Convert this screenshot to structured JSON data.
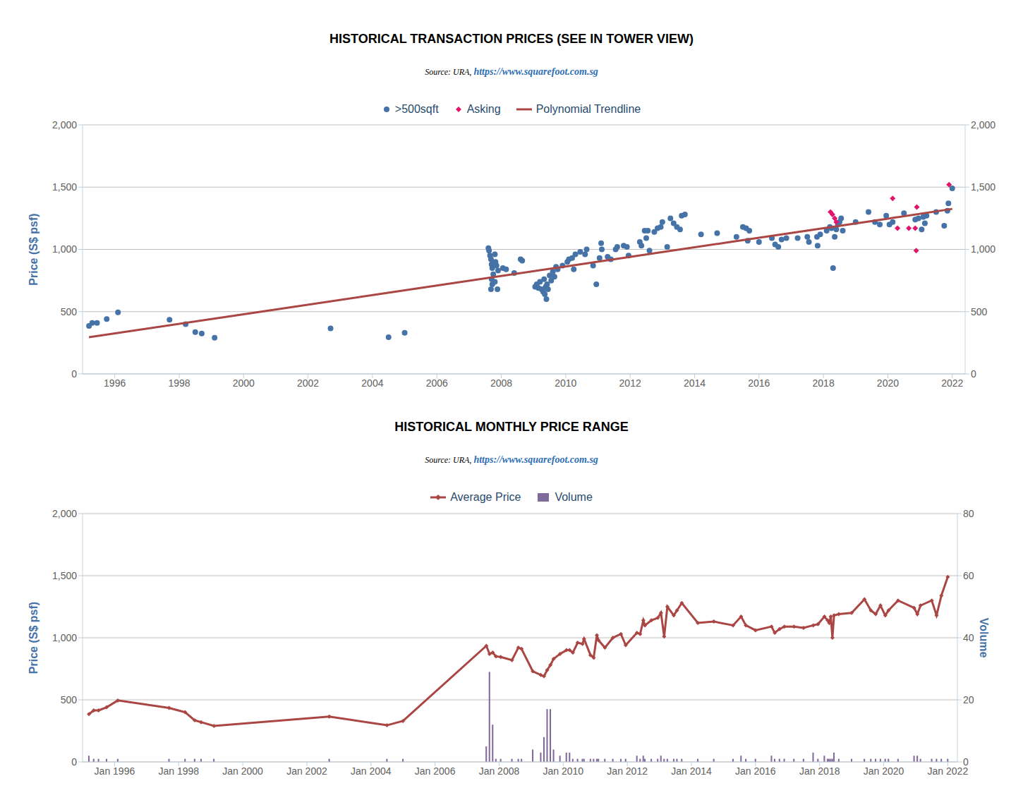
{
  "chart_data": [
    {
      "type": "scatter",
      "title": "HISTORICAL TRANSACTION PRICES (SEE IN TOWER VIEW)",
      "subtitle": "Source: URA, https://www.squarefoot.com.sg",
      "y_label": "Price (S$ psf)",
      "xlim": [
        1995,
        2022.4
      ],
      "xticks": [
        1996,
        1998,
        2000,
        2002,
        2004,
        2006,
        2008,
        2010,
        2012,
        2014,
        2016,
        2018,
        2020,
        2022
      ],
      "ylim": [
        0,
        2000
      ],
      "yticks": [
        0,
        500,
        {
          "value": 1000,
          "label": "1,000"
        },
        {
          "value": 1500,
          "label": "1,500"
        },
        {
          "value": 2000,
          "label": "2,000"
        }
      ],
      "y2lim": [
        0,
        2000
      ],
      "y2ticks": [
        0,
        500,
        {
          "value": 1000,
          "label": "1,000"
        },
        {
          "value": 1500,
          "label": "1,500"
        },
        {
          "value": 2000,
          "label": "2,000"
        }
      ],
      "grid": true,
      "legend": "top",
      "series": [
        {
          "name": ">500sqft",
          "type": "scatter",
          "color": "#4572A7",
          "marker": "circle",
          "x": [
            1995.2,
            1995.3,
            1995.45,
            1995.75,
            1996.1,
            1997.7,
            1998.2,
            1998.5,
            1998.7,
            1999.1,
            2002.7,
            2004.5,
            2005.0,
            2007.6,
            2007.62,
            2007.65,
            2007.68,
            2007.7,
            2007.72,
            2007.75,
            2007.7,
            2007.72,
            2007.68,
            2007.8,
            2007.82,
            2007.85,
            2007.9,
            2007.88,
            2007.8,
            2008.05,
            2008.15,
            2008.4,
            2008.6,
            2008.65,
            2009.05,
            2009.1,
            2009.15,
            2009.2,
            2009.25,
            2009.3,
            2009.33,
            2009.35,
            2009.38,
            2009.4,
            2009.42,
            2009.45,
            2009.5,
            2009.55,
            2009.6,
            2009.65,
            2009.7,
            2009.75,
            2009.9,
            2010.05,
            2010.1,
            2010.2,
            2010.25,
            2010.3,
            2010.45,
            2010.6,
            2010.65,
            2010.85,
            2010.95,
            2011.05,
            2011.1,
            2011.12,
            2011.3,
            2011.4,
            2011.55,
            2011.6,
            2011.8,
            2011.9,
            2011.95,
            2012.3,
            2012.35,
            2012.45,
            2012.5,
            2012.55,
            2012.6,
            2012.75,
            2012.85,
            2012.95,
            2013.0,
            2013.15,
            2013.25,
            2013.35,
            2013.45,
            2013.55,
            2013.6,
            2013.7,
            2014.2,
            2014.7,
            2015.3,
            2015.5,
            2015.6,
            2015.7,
            2015.65,
            2016.0,
            2016.4,
            2016.5,
            2016.6,
            2016.7,
            2016.85,
            2017.2,
            2017.5,
            2017.55,
            2017.8,
            2017.82,
            2017.9,
            2018.1,
            2018.2,
            2018.25,
            2018.3,
            2018.35,
            2018.4,
            2018.45,
            2018.5,
            2018.55,
            2018.6,
            2019.0,
            2019.4,
            2019.6,
            2019.75,
            2019.95,
            2020.05,
            2020.15,
            2020.5,
            2020.85,
            2020.95,
            2021.05,
            2021.1,
            2021.15,
            2021.2,
            2021.5,
            2021.75,
            2021.85,
            2021.88,
            2022.0
          ],
          "values": [
            385,
            410,
            410,
            440,
            495,
            435,
            400,
            335,
            325,
            290,
            365,
            295,
            330,
            1010,
            990,
            950,
            920,
            880,
            850,
            800,
            760,
            720,
            680,
            960,
            900,
            870,
            830,
            680,
            740,
            850,
            840,
            810,
            920,
            910,
            700,
            720,
            690,
            740,
            680,
            660,
            760,
            640,
            700,
            600,
            720,
            680,
            790,
            750,
            820,
            780,
            860,
            840,
            870,
            900,
            920,
            930,
            840,
            960,
            980,
            960,
            1000,
            870,
            720,
            930,
            1050,
            1000,
            940,
            920,
            1000,
            1020,
            1030,
            1020,
            950,
            1060,
            1030,
            1150,
            1090,
            1150,
            990,
            1140,
            1170,
            1180,
            1220,
            1020,
            1250,
            1210,
            1180,
            1160,
            1270,
            1280,
            1120,
            1130,
            1100,
            1180,
            1170,
            1150,
            1070,
            1060,
            1090,
            1040,
            1020,
            1080,
            1090,
            1090,
            1100,
            1060,
            1100,
            1030,
            1120,
            1150,
            1180,
            1170,
            850,
            1100,
            1160,
            1200,
            1220,
            1250,
            1150,
            1220,
            1300,
            1220,
            1200,
            1270,
            1200,
            1220,
            1290,
            1240,
            1250,
            1160,
            1260,
            1210,
            1270,
            1300,
            1190,
            1310,
            1370,
            1490
          ]
        },
        {
          "name": "Asking",
          "type": "scatter",
          "color": "#E0156B",
          "marker": "diamond",
          "x": [
            2018.22,
            2018.28,
            2018.35,
            2018.4,
            2020.15,
            2020.3,
            2020.65,
            2020.85,
            2020.9,
            2020.88,
            2021.9
          ],
          "values": [
            1300,
            1280,
            1250,
            1220,
            1410,
            1170,
            1170,
            1170,
            1340,
            990,
            1520
          ]
        },
        {
          "name": "Polynomial Trendline",
          "type": "line",
          "color": "#AA4643",
          "line_style": "solid",
          "x": [
            1995.2,
            2000,
            2005,
            2010,
            2015,
            2020,
            2022
          ],
          "values": [
            295,
            479,
            671,
            863,
            1055,
            1247,
            1325
          ]
        }
      ]
    },
    {
      "type": "line",
      "title": "HISTORICAL MONTHLY PRICE RANGE",
      "subtitle": "Source: URA, https://www.squarefoot.com.sg",
      "y_label": "Price (S$ psf)",
      "y2_label": "Volume",
      "xlim": [
        1995,
        2022.3
      ],
      "xticks": [
        {
          "value": 1996,
          "label": "Jan 1996"
        },
        {
          "value": 1998,
          "label": "Jan 1998"
        },
        {
          "value": 2000,
          "label": "Jan 2000"
        },
        {
          "value": 2002,
          "label": "Jan 2002"
        },
        {
          "value": 2004,
          "label": "Jan 2004"
        },
        {
          "value": 2006,
          "label": "Jan 2006"
        },
        {
          "value": 2008,
          "label": "Jan 2008"
        },
        {
          "value": 2010,
          "label": "Jan 2010"
        },
        {
          "value": 2012,
          "label": "Jan 2012"
        },
        {
          "value": 2014,
          "label": "Jan 2014"
        },
        {
          "value": 2016,
          "label": "Jan 2016"
        },
        {
          "value": 2018,
          "label": "Jan 2018"
        },
        {
          "value": 2020,
          "label": "Jan 2020"
        },
        {
          "value": 2022,
          "label": "Jan 2022"
        }
      ],
      "ylim": [
        0,
        2000
      ],
      "yticks": [
        0,
        500,
        {
          "value": 1000,
          "label": "1,000"
        },
        {
          "value": 1500,
          "label": "1,500"
        },
        {
          "value": 2000,
          "label": "2,000"
        }
      ],
      "y2lim": [
        0,
        80
      ],
      "y2ticks": [
        0,
        20,
        40,
        60,
        80
      ],
      "grid": true,
      "legend": "top",
      "x": [
        1995.2,
        1995.35,
        1995.5,
        1995.75,
        1996.1,
        1997.7,
        1998.2,
        1998.5,
        1998.7,
        1999.1,
        2002.7,
        2004.5,
        2005.0,
        2007.6,
        2007.7,
        2007.8,
        2007.9,
        2008.05,
        2008.4,
        2008.6,
        2008.7,
        2009.05,
        2009.3,
        2009.4,
        2009.5,
        2009.6,
        2009.7,
        2009.9,
        2010.1,
        2010.2,
        2010.3,
        2010.45,
        2010.6,
        2010.65,
        2010.85,
        2010.95,
        2011.05,
        2011.1,
        2011.3,
        2011.55,
        2011.8,
        2011.95,
        2012.3,
        2012.4,
        2012.5,
        2012.55,
        2012.75,
        2012.95,
        2013.05,
        2013.15,
        2013.25,
        2013.45,
        2013.55,
        2013.7,
        2014.2,
        2014.7,
        2015.3,
        2015.55,
        2015.7,
        2016.0,
        2016.5,
        2016.6,
        2016.75,
        2016.9,
        2017.2,
        2017.5,
        2017.8,
        2017.95,
        2018.15,
        2018.25,
        2018.3,
        2018.35,
        2018.4,
        2018.45,
        2018.6,
        2019.0,
        2019.4,
        2019.6,
        2019.75,
        2019.9,
        2020.05,
        2020.15,
        2020.45,
        2020.95,
        2021.05,
        2021.15,
        2021.5,
        2021.65,
        2021.8,
        2022.0
      ],
      "series": [
        {
          "name": "Average Price",
          "type": "line",
          "color": "#AA4643",
          "marker": "diamond",
          "line_style": "solid",
          "values": [
            385,
            415,
            415,
            440,
            495,
            435,
            400,
            335,
            320,
            290,
            365,
            295,
            330,
            935,
            870,
            880,
            850,
            845,
            820,
            920,
            910,
            730,
            700,
            690,
            740,
            780,
            830,
            870,
            900,
            900,
            880,
            960,
            950,
            990,
            860,
            840,
            1020,
            980,
            920,
            1000,
            1030,
            940,
            1040,
            1030,
            1140,
            1100,
            1140,
            1160,
            1200,
            1010,
            1250,
            1180,
            1220,
            1280,
            1120,
            1130,
            1100,
            1170,
            1100,
            1060,
            1090,
            1040,
            1070,
            1090,
            1090,
            1080,
            1100,
            1110,
            1170,
            1140,
            1120,
            1170,
            1000,
            1180,
            1190,
            1200,
            1310,
            1220,
            1190,
            1260,
            1180,
            1220,
            1300,
            1240,
            1190,
            1260,
            1300,
            1180,
            1340,
            1490
          ]
        },
        {
          "name": "Volume",
          "type": "bar",
          "color": "#80699B",
          "axis": "y2",
          "values": [
            2,
            1,
            1,
            1,
            1,
            1,
            1,
            1,
            1,
            1,
            1,
            1,
            1,
            5,
            29,
            12,
            1,
            1,
            1,
            1,
            1,
            4,
            3,
            8,
            17,
            17,
            4,
            2,
            3,
            3,
            1,
            1,
            1,
            1,
            1,
            1,
            1,
            1,
            1,
            1,
            1,
            1,
            2,
            1,
            2,
            1,
            1,
            1,
            2,
            1,
            1,
            1,
            1,
            1,
            1,
            1,
            1,
            2,
            1,
            1,
            2,
            1,
            1,
            1,
            1,
            1,
            3,
            1,
            2,
            1,
            1,
            1,
            1,
            3,
            1,
            1,
            1,
            1,
            1,
            1,
            1,
            1,
            1,
            2,
            2,
            1,
            1,
            1,
            1,
            1
          ]
        }
      ]
    }
  ]
}
